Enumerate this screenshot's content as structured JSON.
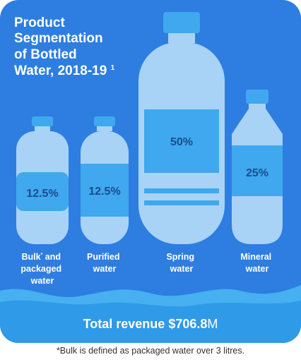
{
  "title": {
    "lines": [
      "Product",
      "Segmentation",
      "of Bottled",
      "Water, 2018-19"
    ],
    "footnote_mark": "1"
  },
  "colors": {
    "card": "#2d7ee0",
    "bottle": "#a8d3f7",
    "cap": "#3fa8ee",
    "label": "#3fa8ee",
    "value_text": "#1d4a8c",
    "wave_light": "#46b0f0",
    "wave_dark": "#2f9ae8",
    "text_light": "#ffffff"
  },
  "chart_data": {
    "type": "bar",
    "categories": [
      "Bulk* and packaged water",
      "Purified water",
      "Spring water",
      "Mineral water"
    ],
    "values": [
      12.5,
      12.5,
      50,
      25
    ],
    "value_labels": [
      "12.5%",
      "12.5%",
      "50%",
      "25%"
    ],
    "category_lines": [
      [
        "Bulk",
        "and",
        "packaged",
        "water"
      ],
      [
        "Purified",
        "water"
      ],
      [
        "Spring",
        "water"
      ],
      [
        "Mineral",
        "water"
      ]
    ],
    "title": "Product Segmentation of Bottled Water, 2018-19"
  },
  "total": {
    "label": "Total revenue",
    "value": "$706.8",
    "unit": "M"
  },
  "footnote": "*Bulk is defined as packaged water over 3 litres."
}
